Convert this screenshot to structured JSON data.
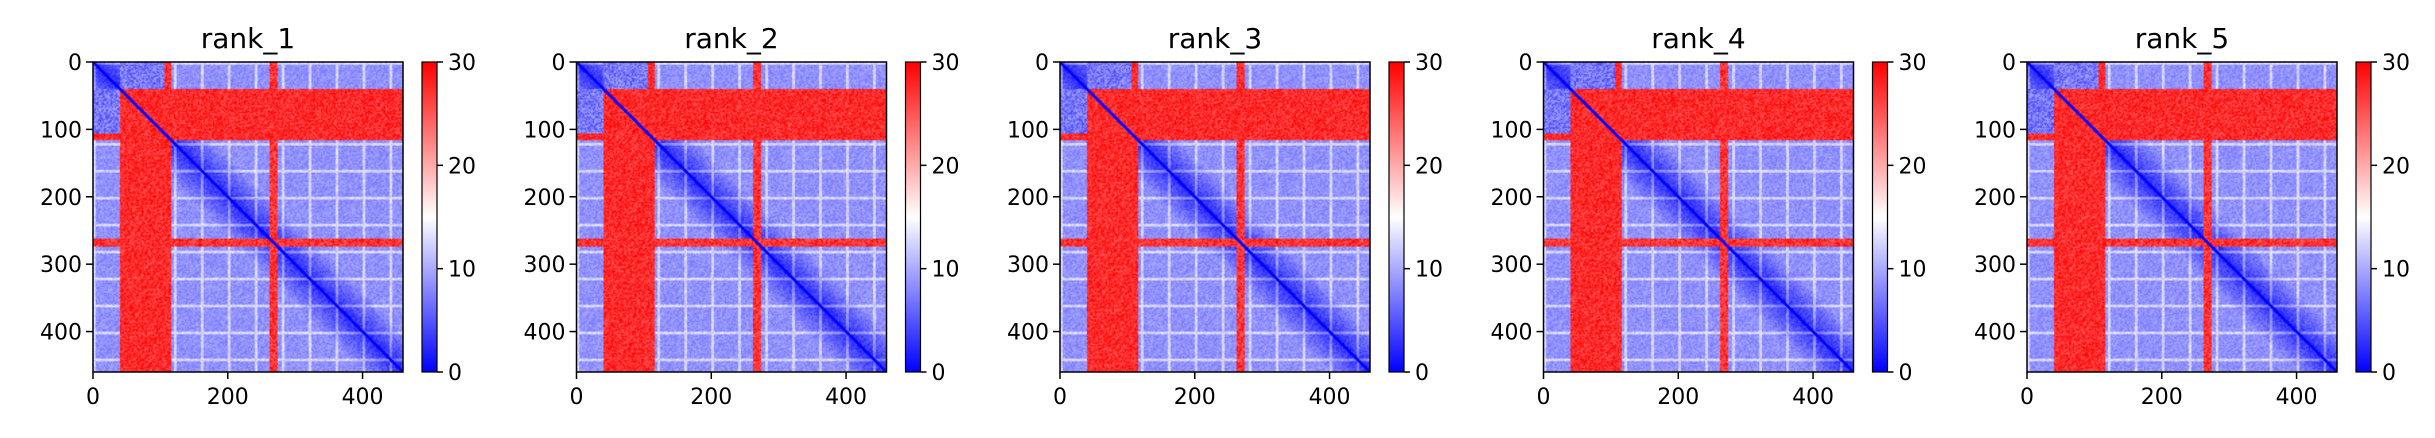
{
  "chart_data": {
    "type": "heatmap",
    "panels": [
      {
        "title": "rank_1"
      },
      {
        "title": "rank_2"
      },
      {
        "title": "rank_3"
      },
      {
        "title": "rank_4"
      },
      {
        "title": "rank_5"
      }
    ],
    "matrix_size": 460,
    "xlim": [
      0,
      460
    ],
    "ylim": [
      460,
      0
    ],
    "x_ticks": [
      0,
      200,
      400
    ],
    "y_ticks": [
      0,
      100,
      200,
      300,
      400
    ],
    "colorbar": {
      "colors": [
        "#0000ff",
        "#ffffff",
        "#ff0000"
      ],
      "range": [
        0,
        30
      ],
      "ticks": [
        0,
        10,
        20,
        30
      ]
    },
    "regions": {
      "high_cols": [
        40,
        105
      ],
      "high_rows": [
        40,
        115
      ],
      "high_band_rows": [
        262,
        272
      ],
      "diagonal_break": 115
    }
  }
}
